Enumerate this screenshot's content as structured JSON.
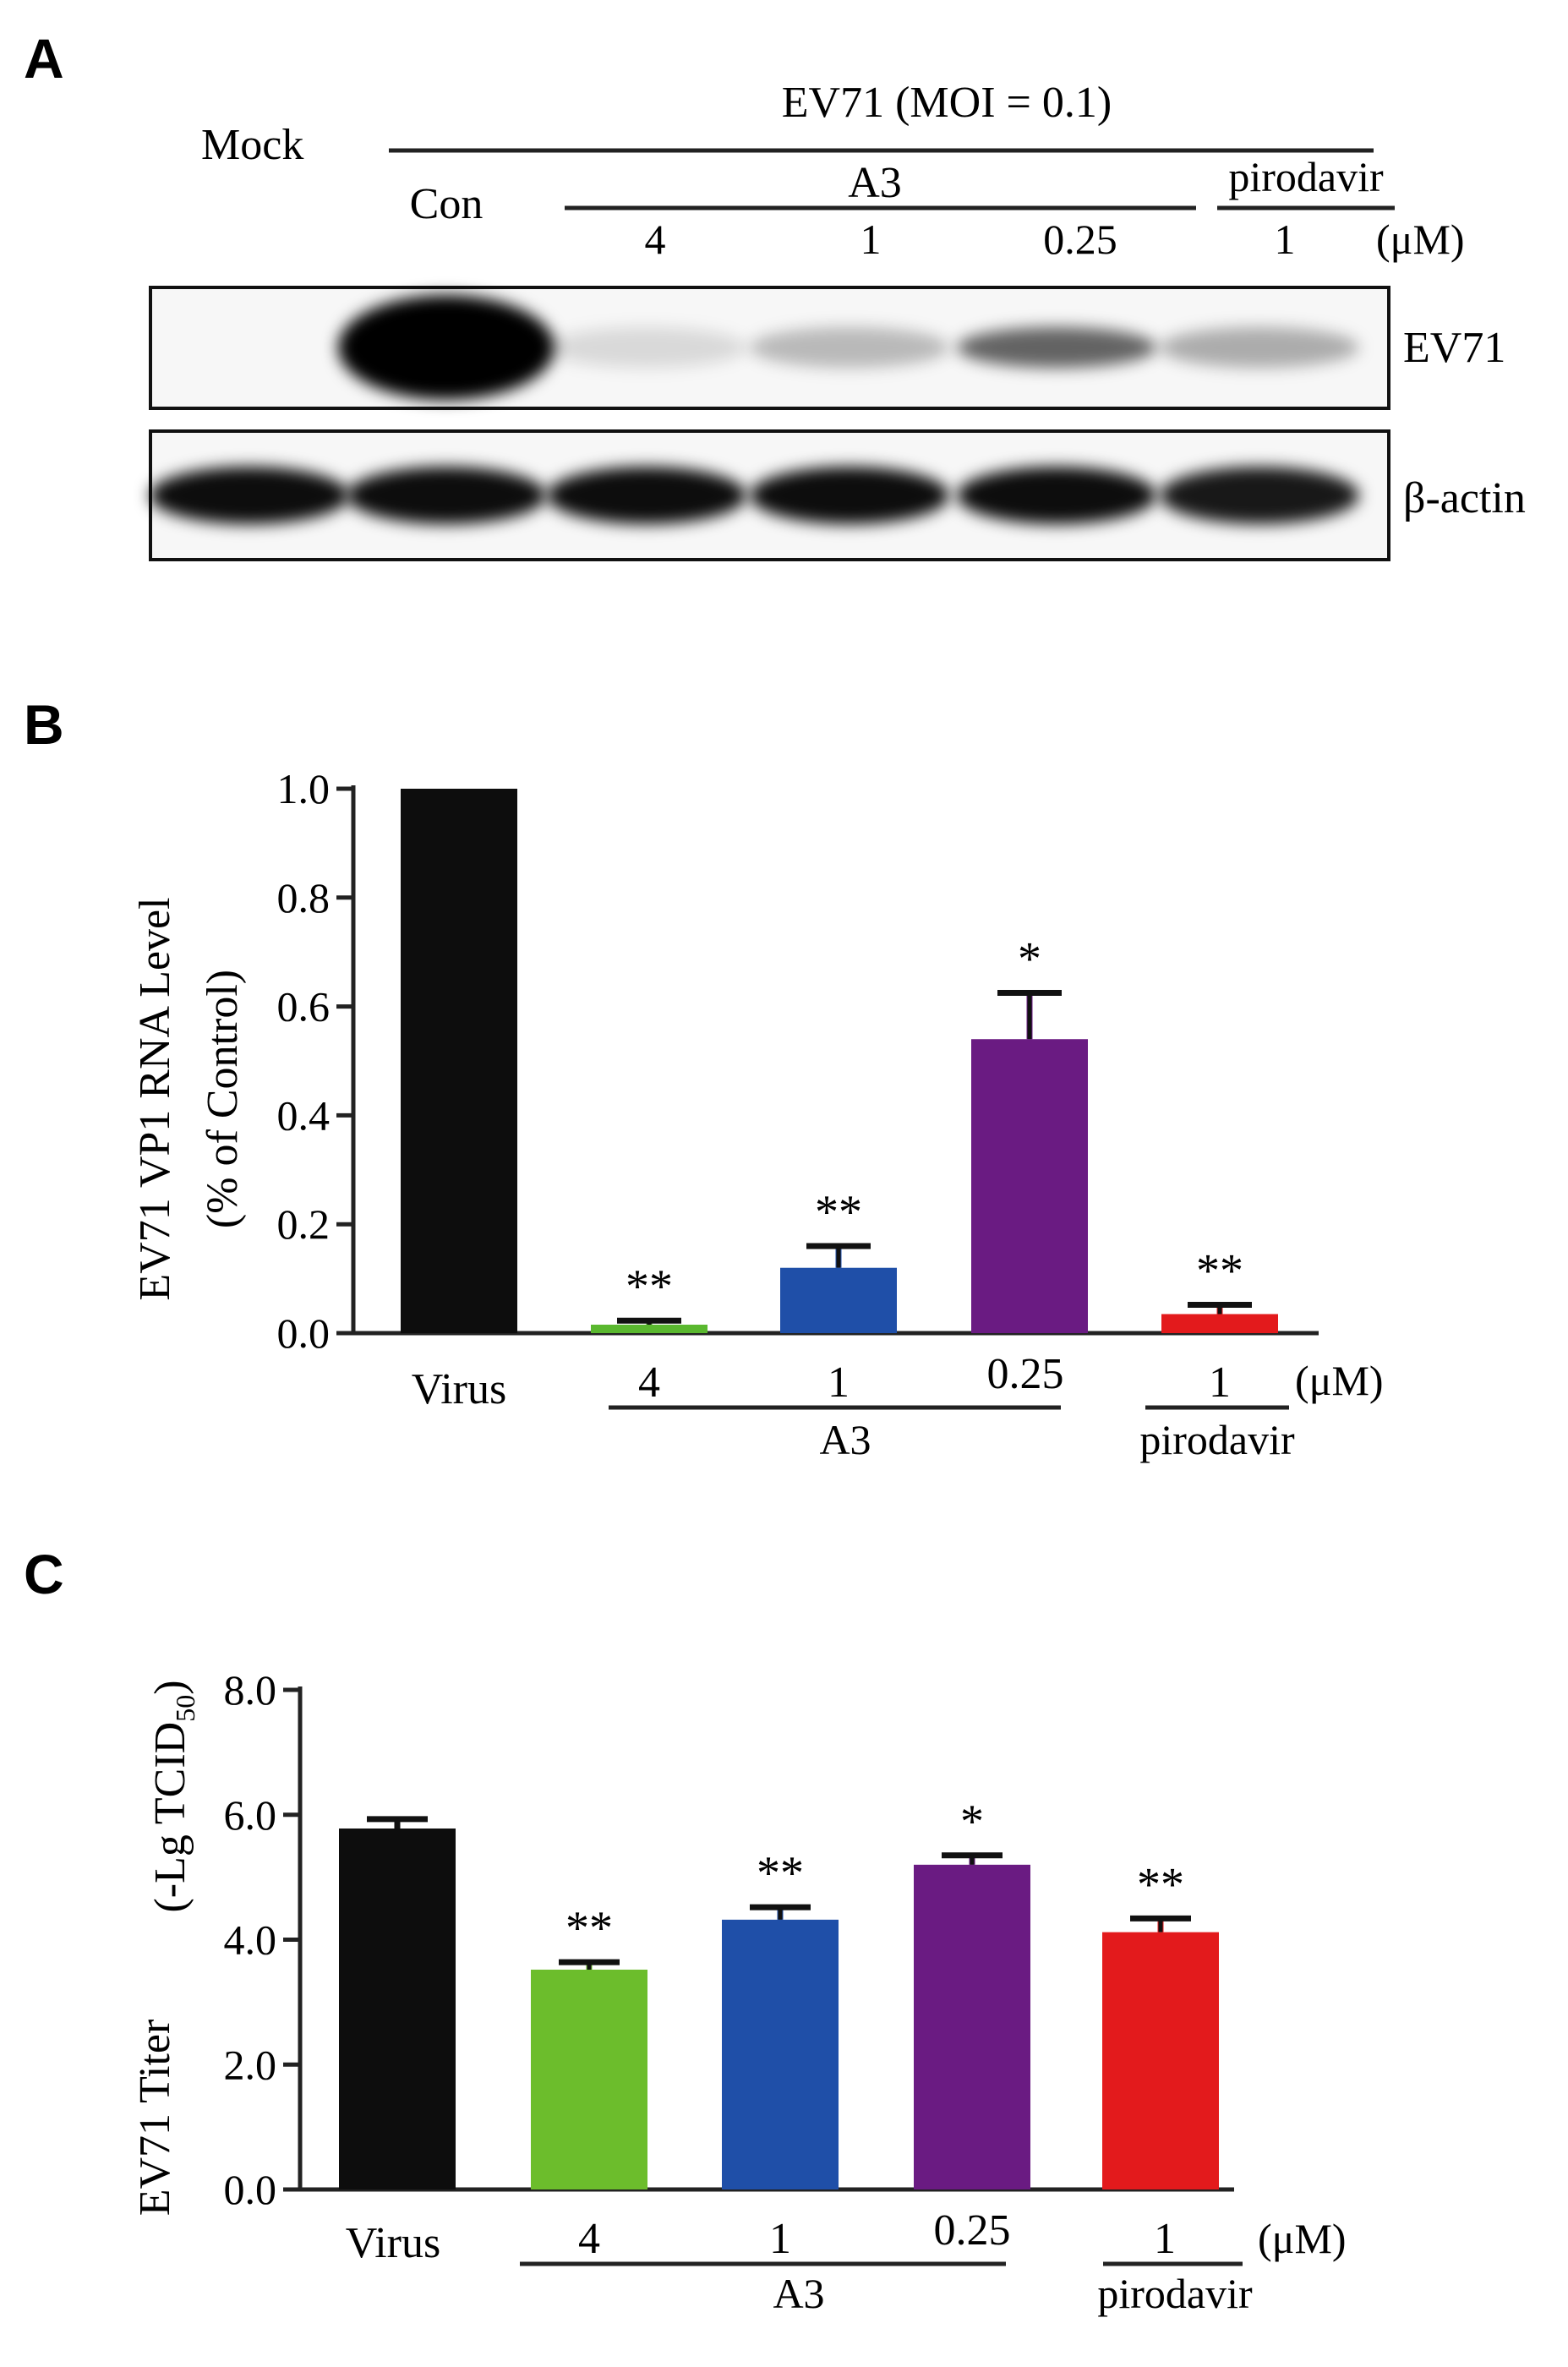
{
  "panelA": {
    "letter": "A",
    "mock": "Mock",
    "infection": "EV71 (MOI = 0.1)",
    "con": "Con",
    "a3": "A3",
    "pirodavir": "pirodavir",
    "doses": [
      "4",
      "1",
      "0.25",
      "1"
    ],
    "unit": "(μM)",
    "rows": [
      {
        "label": "EV71",
        "intensities": [
          0.0,
          1.0,
          0.12,
          0.25,
          0.6,
          0.3
        ]
      },
      {
        "label": "β-actin",
        "intensities": [
          0.95,
          0.95,
          0.95,
          0.95,
          0.95,
          0.9
        ]
      }
    ]
  },
  "panelB": {
    "letter": "B",
    "unit": "(μM)",
    "group_a3": "A3",
    "group_pirodavir": "pirodavir",
    "chart_data": {
      "type": "bar",
      "title": "",
      "ylabel": "EV71 VP1 RNA Level",
      "ylabel2": "(% of Control)",
      "ylim": [
        0,
        1.0
      ],
      "yticks": [
        "0.0",
        "0.2",
        "0.4",
        "0.6",
        "0.8",
        "1.0"
      ],
      "ytick_values": [
        0,
        0.2,
        0.4,
        0.6,
        0.8,
        1.0
      ],
      "categories": [
        "Virus",
        "4",
        "1",
        "0.25",
        "1"
      ],
      "values": [
        1.0,
        0.01,
        0.12,
        0.54,
        0.035
      ],
      "errors": [
        0,
        0.013,
        0.04,
        0.085,
        0.017
      ],
      "significance": [
        "",
        "**",
        "**",
        "*",
        "**"
      ],
      "colors": [
        "#0d0d0d",
        "#5ab82f",
        "#1f4fa8",
        "#6a1b82",
        "#e31a1c"
      ]
    }
  },
  "panelC": {
    "letter": "C",
    "unit": "(μM)",
    "group_a3": "A3",
    "group_pirodavir": "pirodavir",
    "chart_data": {
      "type": "bar",
      "title": "",
      "ylabel": "EV71 Titer",
      "ylabel2": "(-Lg TCID",
      "ylabel2_sub": "50",
      "ylabel2_end": ")",
      "ylim": [
        0,
        8.0
      ],
      "yticks": [
        "0.0",
        "2.0",
        "4.0",
        "6.0",
        "8.0"
      ],
      "ytick_values": [
        0,
        2,
        4,
        6,
        8
      ],
      "categories": [
        "Virus",
        "4",
        "1",
        "0.25",
        "1"
      ],
      "values": [
        5.78,
        3.52,
        4.32,
        5.2,
        4.12
      ],
      "errors": [
        0.15,
        0.12,
        0.2,
        0.15,
        0.22
      ],
      "significance": [
        "",
        "**",
        "**",
        "*",
        "**"
      ],
      "colors": [
        "#0d0d0d",
        "#6cbd2c",
        "#1f4fa8",
        "#6a1b82",
        "#e31a1c"
      ]
    }
  }
}
